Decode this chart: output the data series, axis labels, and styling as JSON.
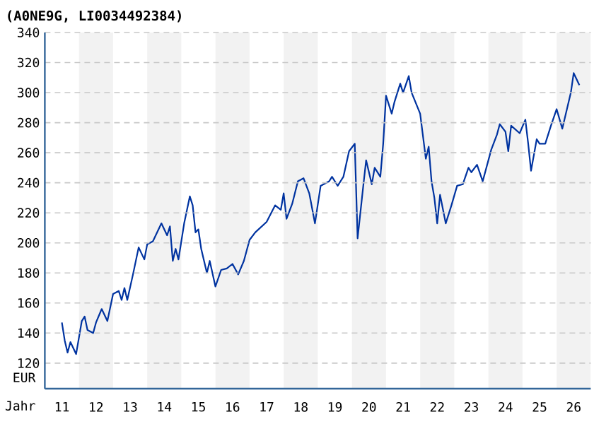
{
  "chart_data": {
    "type": "line",
    "title": "(A0NE9G, LI0034492384)",
    "xlabel": "Jahr",
    "ylabel": "EUR",
    "xlim": [
      "2011-01",
      "2027-01"
    ],
    "ylim": [
      103,
      340
    ],
    "xticks": [
      {
        "value": "2011-07",
        "label": "11"
      },
      {
        "value": "2012-07",
        "label": "12"
      },
      {
        "value": "2013-07",
        "label": "13"
      },
      {
        "value": "2014-07",
        "label": "14"
      },
      {
        "value": "2015-07",
        "label": "15"
      },
      {
        "value": "2016-07",
        "label": "16"
      },
      {
        "value": "2017-07",
        "label": "17"
      },
      {
        "value": "2018-07",
        "label": "18"
      },
      {
        "value": "2019-07",
        "label": "19"
      },
      {
        "value": "2020-07",
        "label": "20"
      },
      {
        "value": "2021-07",
        "label": "21"
      },
      {
        "value": "2022-07",
        "label": "22"
      },
      {
        "value": "2023-07",
        "label": "23"
      },
      {
        "value": "2024-07",
        "label": "24"
      },
      {
        "value": "2025-07",
        "label": "25"
      },
      {
        "value": "2026-07",
        "label": "26"
      }
    ],
    "yticks": [
      120,
      140,
      160,
      180,
      200,
      220,
      240,
      260,
      280,
      300,
      320,
      340
    ],
    "grid": "y",
    "marker": "none",
    "line_style": "solid",
    "bands": [
      {
        "axis": "x",
        "from": "2012-01",
        "to": "2013-01",
        "color": "#f2f2f2"
      },
      {
        "axis": "x",
        "from": "2014-01",
        "to": "2015-01",
        "color": "#f2f2f2"
      },
      {
        "axis": "x",
        "from": "2016-01",
        "to": "2017-01",
        "color": "#f2f2f2"
      },
      {
        "axis": "x",
        "from": "2018-01",
        "to": "2019-01",
        "color": "#f2f2f2"
      },
      {
        "axis": "x",
        "from": "2020-01",
        "to": "2021-01",
        "color": "#f2f2f2"
      },
      {
        "axis": "x",
        "from": "2022-01",
        "to": "2023-01",
        "color": "#f2f2f2"
      },
      {
        "axis": "x",
        "from": "2024-01",
        "to": "2025-01",
        "color": "#f2f2f2"
      },
      {
        "axis": "x",
        "from": "2026-01",
        "to": "2027-01",
        "color": "#f2f2f2"
      }
    ],
    "series": [
      {
        "color": "#0033a0",
        "x": [
          "2011-07",
          "2011-08",
          "2011-09",
          "2011-10",
          "2011-12",
          "2012-02",
          "2012-03",
          "2012-04",
          "2012-06",
          "2012-07",
          "2012-09",
          "2012-11",
          "2013-01",
          "2013-03",
          "2013-04",
          "2013-05",
          "2013-06",
          "2013-08",
          "2013-10",
          "2013-12",
          "2014-01",
          "2014-03",
          "2014-06",
          "2014-08",
          "2014-09",
          "2014-10",
          "2014-11",
          "2014-12",
          "2015-02",
          "2015-04",
          "2015-05",
          "2015-06",
          "2015-07",
          "2015-08",
          "2015-10",
          "2015-11",
          "2016-01",
          "2016-03",
          "2016-05",
          "2016-07",
          "2016-09",
          "2016-11",
          "2017-01",
          "2017-03",
          "2017-07",
          "2017-10",
          "2017-12",
          "2018-01",
          "2018-02",
          "2018-04",
          "2018-06",
          "2018-08",
          "2018-10",
          "2018-12",
          "2019-02",
          "2019-05",
          "2019-06",
          "2019-08",
          "2019-10",
          "2019-12",
          "2020-02",
          "2020-03",
          "2020-05",
          "2020-06",
          "2020-08",
          "2020-09",
          "2020-11",
          "2020-12",
          "2021-01",
          "2021-03",
          "2021-04",
          "2021-06",
          "2021-07",
          "2021-09",
          "2021-10",
          "2022-01",
          "2022-03",
          "2022-04",
          "2022-05",
          "2022-06",
          "2022-07",
          "2022-08",
          "2022-10",
          "2022-12",
          "2023-02",
          "2023-04",
          "2023-06",
          "2023-07",
          "2023-09",
          "2023-11",
          "2024-02",
          "2024-04",
          "2024-05",
          "2024-07",
          "2024-08",
          "2024-09",
          "2024-12",
          "2025-02",
          "2025-03",
          "2025-04",
          "2025-06",
          "2025-07",
          "2025-09",
          "2025-11",
          "2026-01",
          "2026-03",
          "2026-06",
          "2026-07",
          "2026-09"
        ],
        "values": [
          147,
          135,
          127,
          134,
          126,
          148,
          151,
          142,
          140,
          147,
          156,
          148,
          166,
          168,
          162,
          170,
          162,
          179,
          197,
          189,
          199,
          201,
          213,
          205,
          211,
          188,
          196,
          189,
          213,
          231,
          225,
          207,
          209,
          196,
          180,
          188,
          171,
          182,
          183,
          186,
          179,
          188,
          202,
          207,
          214,
          225,
          222,
          233,
          216,
          226,
          241,
          243,
          233,
          213,
          238,
          241,
          244,
          238,
          244,
          261,
          266,
          203,
          238,
          255,
          239,
          250,
          244,
          266,
          298,
          286,
          294,
          306,
          300,
          311,
          300,
          286,
          256,
          264,
          241,
          230,
          213,
          232,
          213,
          225,
          238,
          239,
          250,
          247,
          252,
          241,
          262,
          272,
          279,
          274,
          261,
          278,
          273,
          282,
          266,
          248,
          269,
          266,
          266,
          278,
          289,
          276,
          300,
          313,
          305
        ]
      }
    ]
  }
}
